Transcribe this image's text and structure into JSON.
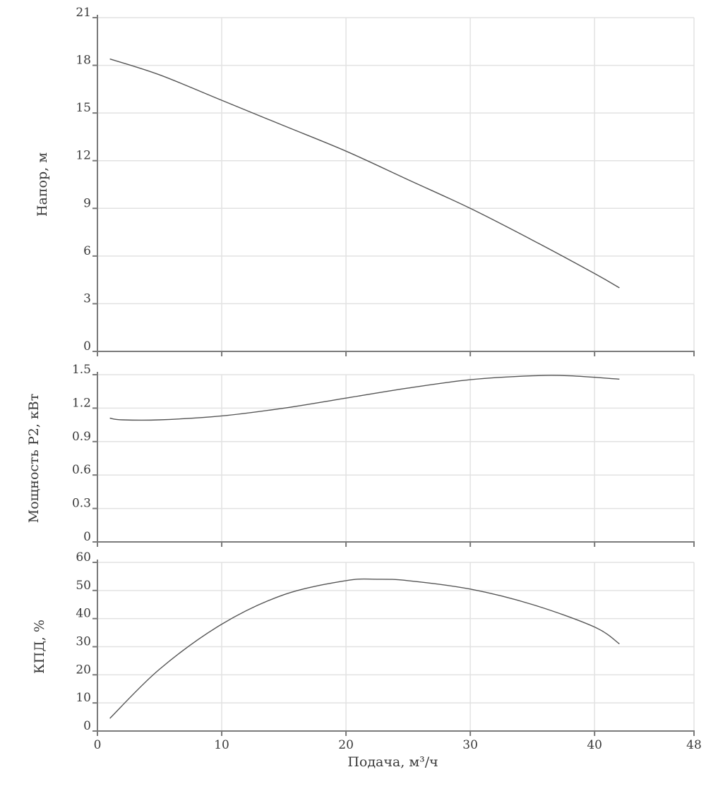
{
  "chart_data": [
    {
      "type": "line",
      "ylabel": "Напор, м",
      "xlim": [
        0,
        48
      ],
      "ylim": [
        0,
        21
      ],
      "y_ticks": [
        "0",
        "3",
        "6",
        "9",
        "12",
        "15",
        "18",
        "21"
      ],
      "grid": true,
      "series": [
        {
          "x": [
            1,
            5,
            10,
            15,
            20,
            25,
            30,
            35,
            40,
            42
          ],
          "y": [
            18.4,
            17.4,
            15.8,
            14.2,
            12.6,
            10.8,
            9.0,
            7.0,
            4.9,
            4.0
          ]
        }
      ]
    },
    {
      "type": "line",
      "ylabel": "Мощность P2, кВт",
      "xlim": [
        0,
        48
      ],
      "ylim": [
        0,
        1.5
      ],
      "y_ticks": [
        "0",
        "0.3",
        "0.6",
        "0.9",
        "1.2",
        "1.5"
      ],
      "grid": true,
      "series": [
        {
          "x": [
            1,
            2,
            5,
            10,
            15,
            20,
            25,
            30,
            35,
            38,
            42
          ],
          "y": [
            1.11,
            1.095,
            1.095,
            1.13,
            1.2,
            1.29,
            1.38,
            1.455,
            1.49,
            1.49,
            1.46
          ]
        }
      ]
    },
    {
      "type": "line",
      "xlabel": "Подача, м³/ч",
      "ylabel": "КПД, %",
      "xlim": [
        0,
        48
      ],
      "ylim": [
        0,
        60
      ],
      "x_ticks": [
        "0",
        "10",
        "20",
        "30",
        "40",
        "48"
      ],
      "y_ticks": [
        "0",
        "10",
        "20",
        "30",
        "40",
        "50",
        "60"
      ],
      "grid": true,
      "series": [
        {
          "x": [
            1,
            5,
            10,
            15,
            20,
            22.5,
            25,
            30,
            35,
            40,
            42
          ],
          "y": [
            4.5,
            22,
            38,
            48.5,
            53.5,
            54,
            53.5,
            50.5,
            45,
            37,
            31
          ]
        }
      ]
    }
  ]
}
